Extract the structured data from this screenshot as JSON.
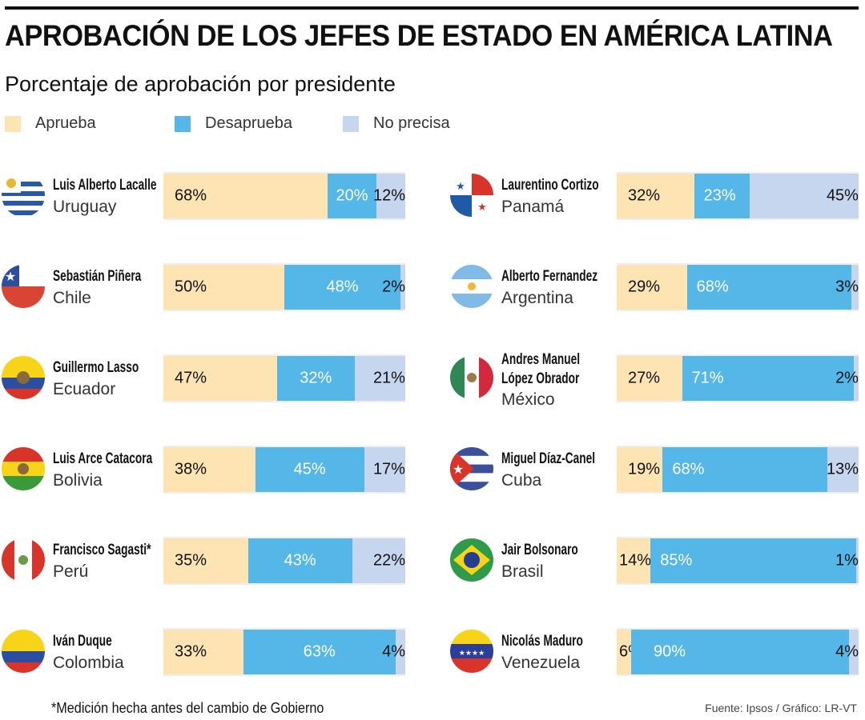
{
  "title": "APROBACIÓN DE LOS JEFES DE ESTADO EN AMÉRICA LATINA",
  "subtitle": "Porcentaje de aprobación por presidente",
  "colors": {
    "aprueba": "#fde4b2",
    "desaprueba": "#54b7e8",
    "no_precisa": "#c7d6ef"
  },
  "legend": [
    "Aprueba",
    "Desaprueba",
    "No precisa"
  ],
  "footnote": "*Medición hecha antes del cambio de Gobierno",
  "source": "Fuente: Ipsos / Gráfico: LR-VT",
  "chart_data": {
    "type": "bar",
    "stacked": true,
    "orientation": "horizontal",
    "series_names": [
      "Aprueba",
      "Desaprueba",
      "No precisa"
    ],
    "left": [
      {
        "name": "Luis Alberto Lacalle",
        "country": "Uruguay",
        "flag": "uruguay-flag-icon",
        "values": [
          68,
          20,
          12
        ]
      },
      {
        "name": "Sebastián Piñera",
        "country": "Chile",
        "flag": "chile-flag-icon",
        "values": [
          50,
          48,
          2
        ]
      },
      {
        "name": "Guillermo Lasso",
        "country": "Ecuador",
        "flag": "ecuador-flag-icon",
        "values": [
          47,
          32,
          21
        ]
      },
      {
        "name": "Luis Arce Catacora",
        "country": "Bolivia",
        "flag": "bolivia-flag-icon",
        "values": [
          38,
          45,
          17
        ]
      },
      {
        "name": "Francisco Sagasti*",
        "country": "Perú",
        "flag": "peru-flag-icon",
        "values": [
          35,
          43,
          22
        ]
      },
      {
        "name": "Iván Duque",
        "country": "Colombia",
        "flag": "colombia-flag-icon",
        "values": [
          33,
          63,
          4
        ]
      }
    ],
    "right": [
      {
        "name": "Laurentino Cortizo",
        "country": "Panamá",
        "flag": "panama-flag-icon",
        "values": [
          32,
          23,
          45
        ]
      },
      {
        "name": "Alberto Fernandez",
        "country": "Argentina",
        "flag": "argentina-flag-icon",
        "values": [
          29,
          68,
          3
        ]
      },
      {
        "name": "Andres Manuel López Obrador",
        "country": "México",
        "flag": "mexico-flag-icon",
        "values": [
          27,
          71,
          2
        ]
      },
      {
        "name": "Miguel Díaz-Canel",
        "country": "Cuba",
        "flag": "cuba-flag-icon",
        "values": [
          19,
          68,
          13
        ]
      },
      {
        "name": "Jair Bolsonaro",
        "country": "Brasil",
        "flag": "brazil-flag-icon",
        "values": [
          14,
          85,
          1
        ]
      },
      {
        "name": "Nicolás Maduro",
        "country": "Venezuela",
        "flag": "venezuela-flag-icon",
        "values": [
          6,
          90,
          4
        ]
      }
    ]
  }
}
